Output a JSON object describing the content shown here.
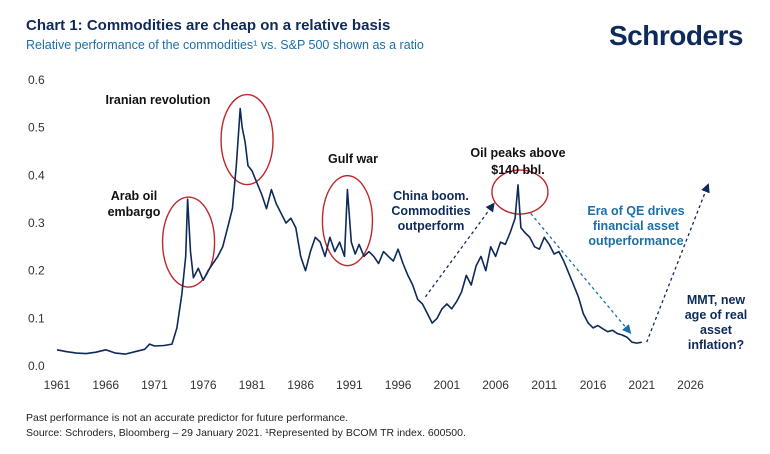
{
  "header": {
    "title": "Chart 1: Commodities are cheap on a relative basis",
    "subtitle": "Relative performance of the commodities¹ vs. S&P 500 shown as a ratio",
    "logo": "Schroders"
  },
  "footer": {
    "line1": "Past performance is not an accurate predictor for future performance.",
    "line2": "Source: Schroders, Bloomberg – 29 January 2021. ¹Represented by BCOM TR index. 600500."
  },
  "colors": {
    "line": "#0e2a5a",
    "accent_blue": "#1b6fa8",
    "circle": "#c0272d",
    "text": "#111111"
  },
  "chart_data": {
    "type": "line",
    "title": "Chart 1: Commodities are cheap on a relative basis",
    "subtitle": "Relative performance of the commodities¹ vs. S&P 500 shown as a ratio",
    "xlim": [
      1961,
      2030
    ],
    "ylim": [
      0,
      0.6
    ],
    "x_ticks": [
      "1961",
      "1966",
      "1971",
      "1976",
      "1981",
      "1986",
      "1991",
      "1996",
      "2001",
      "2006",
      "2011",
      "2016",
      "2021",
      "2026"
    ],
    "y_ticks": [
      "0.0",
      "0.1",
      "0.2",
      "0.3",
      "0.4",
      "0.5",
      "0.6"
    ],
    "grid": false,
    "legend": "none",
    "series": [
      {
        "x": [
          1961.0,
          1962.0,
          1963.0,
          1964.0,
          1965.0,
          1966.0,
          1967.0,
          1968.0,
          1969.0,
          1970.0,
          1970.5,
          1971.0,
          1972.0,
          1972.8,
          1973.3,
          1973.8,
          1974.2,
          1974.4,
          1974.7,
          1975.0,
          1975.5,
          1976.0,
          1976.5,
          1977.0,
          1977.5,
          1978.0,
          1978.5,
          1979.0,
          1979.4,
          1979.8,
          1980.0,
          1980.3,
          1980.6,
          1981.0,
          1981.5,
          1982.0,
          1982.5,
          1983.0,
          1983.5,
          1984.0,
          1984.5,
          1985.0,
          1985.5,
          1986.0,
          1986.5,
          1987.0,
          1987.5,
          1988.0,
          1988.5,
          1989.0,
          1989.5,
          1990.0,
          1990.5,
          1990.8,
          1991.2,
          1991.6,
          1992.0,
          1992.5,
          1993.0,
          1993.5,
          1994.0,
          1994.5,
          1995.0,
          1995.5,
          1996.0,
          1996.5,
          1997.0,
          1997.5,
          1998.0,
          1998.5,
          1999.0,
          1999.5,
          2000.0,
          2000.5,
          2001.0,
          2001.5,
          2002.0,
          2002.5,
          2003.0,
          2003.5,
          2004.0,
          2004.5,
          2005.0,
          2005.5,
          2006.0,
          2006.5,
          2007.0,
          2007.5,
          2008.0,
          2008.3,
          2008.6,
          2009.0,
          2009.5,
          2010.0,
          2010.5,
          2011.0,
          2011.5,
          2012.0,
          2012.5,
          2013.0,
          2013.5,
          2014.0,
          2014.5,
          2015.0,
          2015.5,
          2016.0,
          2016.5,
          2017.0,
          2017.5,
          2018.0,
          2018.5,
          2019.0,
          2019.5,
          2020.0,
          2020.5,
          2021.0
        ],
        "y": [
          0.034,
          0.03,
          0.027,
          0.026,
          0.029,
          0.034,
          0.027,
          0.025,
          0.03,
          0.035,
          0.046,
          0.042,
          0.043,
          0.046,
          0.08,
          0.15,
          0.23,
          0.35,
          0.24,
          0.185,
          0.205,
          0.18,
          0.2,
          0.215,
          0.23,
          0.25,
          0.29,
          0.33,
          0.42,
          0.54,
          0.5,
          0.47,
          0.42,
          0.41,
          0.385,
          0.36,
          0.33,
          0.37,
          0.34,
          0.32,
          0.3,
          0.31,
          0.29,
          0.23,
          0.2,
          0.24,
          0.27,
          0.26,
          0.23,
          0.27,
          0.24,
          0.26,
          0.23,
          0.37,
          0.26,
          0.235,
          0.255,
          0.23,
          0.24,
          0.23,
          0.215,
          0.24,
          0.23,
          0.22,
          0.245,
          0.215,
          0.19,
          0.17,
          0.14,
          0.13,
          0.11,
          0.09,
          0.1,
          0.12,
          0.13,
          0.12,
          0.135,
          0.155,
          0.19,
          0.17,
          0.21,
          0.23,
          0.2,
          0.25,
          0.23,
          0.26,
          0.255,
          0.28,
          0.31,
          0.38,
          0.29,
          0.28,
          0.27,
          0.25,
          0.245,
          0.27,
          0.255,
          0.235,
          0.24,
          0.22,
          0.195,
          0.17,
          0.145,
          0.11,
          0.09,
          0.08,
          0.085,
          0.078,
          0.072,
          0.075,
          0.068,
          0.065,
          0.06,
          0.05,
          0.048,
          0.05
        ]
      }
    ],
    "arrows": [
      {
        "style": "dashed",
        "color": "#0e2a5a",
        "from": [
          1998.8,
          0.145
        ],
        "to": [
          2005.8,
          0.34
        ]
      },
      {
        "style": "dashed",
        "color": "#1b6fa8",
        "from": [
          2009.6,
          0.32
        ],
        "to": [
          2019.8,
          0.07
        ]
      },
      {
        "style": "dashed",
        "color": "#0e2a5a",
        "from": [
          2021.5,
          0.05
        ],
        "to": [
          2027.8,
          0.38
        ]
      }
    ],
    "highlights": [
      {
        "label": "Arab oil embargo",
        "center": [
          1974.5,
          0.26
        ]
      },
      {
        "label": "Iranian revolution",
        "center": [
          1980.5,
          0.475
        ]
      },
      {
        "label": "Gulf war",
        "center": [
          1990.8,
          0.305
        ]
      },
      {
        "label": "Oil peaks above $140 bbl.",
        "center": [
          2008.5,
          0.365
        ]
      }
    ],
    "annotations": [
      {
        "name": "annotation-iranian-revolution",
        "style": "black",
        "lines": [
          "Iranian revolution"
        ]
      },
      {
        "name": "annotation-arab-oil-embargo",
        "style": "black",
        "lines": [
          "Arab oil",
          "embargo"
        ]
      },
      {
        "name": "annotation-gulf-war",
        "style": "black",
        "lines": [
          "Gulf war"
        ]
      },
      {
        "name": "annotation-oil-peaks",
        "style": "black",
        "lines": [
          "Oil peaks above",
          "$140 bbl."
        ]
      },
      {
        "name": "annotation-china-boom",
        "style": "navy",
        "lines": [
          "China boom.",
          "Commodities",
          "outperform"
        ]
      },
      {
        "name": "annotation-era-of-qe",
        "style": "blue",
        "lines": [
          "Era of QE drives",
          "financial asset",
          "outperformance"
        ]
      },
      {
        "name": "annotation-mmt",
        "style": "navy",
        "lines": [
          "MMT, new",
          "age of real",
          "asset",
          "inflation?"
        ]
      }
    ]
  }
}
